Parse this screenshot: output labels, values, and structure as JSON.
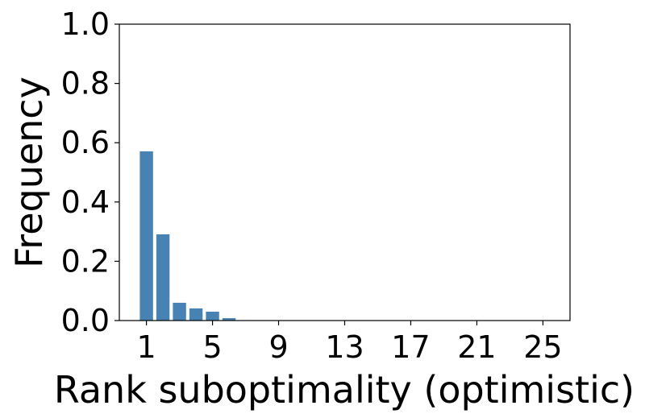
{
  "chart_data": {
    "type": "bar",
    "xlabel": "Rank suboptimality (optimistic)",
    "ylabel": "Frequency",
    "x": [
      1,
      2,
      3,
      4,
      5,
      6,
      7,
      8,
      9,
      10,
      11,
      12,
      13,
      14,
      15,
      16,
      17,
      18,
      19,
      20,
      21,
      22,
      23,
      24,
      25
    ],
    "values": [
      0.571,
      0.291,
      0.06,
      0.041,
      0.03,
      0.008,
      0,
      0,
      0,
      0,
      0,
      0,
      0,
      0,
      0,
      0,
      0,
      0,
      0,
      0,
      0,
      0,
      0,
      0,
      0
    ],
    "color": "#4682b4",
    "xlim": [
      -0.64,
      26.64
    ],
    "xticks": [
      1,
      5,
      9,
      13,
      17,
      21,
      25
    ],
    "ylim": [
      0,
      1
    ],
    "yticks": [
      {
        "value": 0,
        "label": "0.0"
      },
      {
        "value": 0.2,
        "label": "0.2"
      },
      {
        "value": 0.4,
        "label": "0.4"
      },
      {
        "value": 0.6,
        "label": "0.6"
      },
      {
        "value": 0.8,
        "label": "0.8"
      },
      {
        "value": 1,
        "label": "1.0"
      }
    ]
  }
}
